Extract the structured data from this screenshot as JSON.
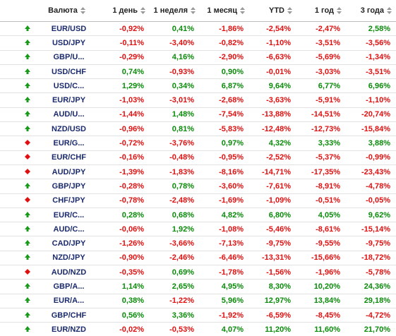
{
  "table": {
    "headers": [
      "Валюта",
      "1 день",
      "1 неделя",
      "1 месяц",
      "YTD",
      "1 год",
      "3 года"
    ],
    "rows": [
      {
        "direction": "up",
        "cells": [
          "EUR/USD",
          "-0,92%",
          "0,41%",
          "-1,86%",
          "-2,54%",
          "-2,47%",
          "2,58%"
        ]
      },
      {
        "direction": "up",
        "cells": [
          "USD/JPY",
          "-0,11%",
          "-3,40%",
          "-0,82%",
          "-1,10%",
          "-3,51%",
          "-3,56%"
        ]
      },
      {
        "direction": "up",
        "cells": [
          "GBP/U...",
          "-0,29%",
          "4,16%",
          "-2,90%",
          "-6,63%",
          "-5,69%",
          "-1,34%"
        ]
      },
      {
        "direction": "up",
        "cells": [
          "USD/CHF",
          "0,74%",
          "-0,93%",
          "0,90%",
          "-0,01%",
          "-3,03%",
          "-3,51%"
        ]
      },
      {
        "direction": "up",
        "cells": [
          "USD/C...",
          "1,29%",
          "0,34%",
          "6,87%",
          "9,64%",
          "6,77%",
          "6,96%"
        ]
      },
      {
        "direction": "up",
        "cells": [
          "EUR/JPY",
          "-1,03%",
          "-3,01%",
          "-2,68%",
          "-3,63%",
          "-5,91%",
          "-1,10%"
        ]
      },
      {
        "direction": "up",
        "cells": [
          "AUD/U...",
          "-1,44%",
          "1,48%",
          "-7,54%",
          "-13,88%",
          "-14,51%",
          "-20,74%"
        ]
      },
      {
        "direction": "up",
        "cells": [
          "NZD/USD",
          "-0,96%",
          "0,81%",
          "-5,83%",
          "-12,48%",
          "-12,73%",
          "-15,84%"
        ]
      },
      {
        "direction": "down",
        "cells": [
          "EUR/G...",
          "-0,72%",
          "-3,76%",
          "0,97%",
          "4,32%",
          "3,33%",
          "3,88%"
        ]
      },
      {
        "direction": "down",
        "cells": [
          "EUR/CHF",
          "-0,16%",
          "-0,48%",
          "-0,95%",
          "-2,52%",
          "-5,37%",
          "-0,99%"
        ]
      },
      {
        "direction": "down",
        "cells": [
          "AUD/JPY",
          "-1,39%",
          "-1,83%",
          "-8,16%",
          "-14,71%",
          "-17,35%",
          "-23,43%"
        ]
      },
      {
        "direction": "up",
        "cells": [
          "GBP/JPY",
          "-0,28%",
          "0,78%",
          "-3,60%",
          "-7,61%",
          "-8,91%",
          "-4,78%"
        ]
      },
      {
        "direction": "down",
        "cells": [
          "CHF/JPY",
          "-0,78%",
          "-2,48%",
          "-1,69%",
          "-1,09%",
          "-0,51%",
          "-0,05%"
        ]
      },
      {
        "direction": "up",
        "cells": [
          "EUR/C...",
          "0,28%",
          "0,68%",
          "4,82%",
          "6,80%",
          "4,05%",
          "9,62%"
        ]
      },
      {
        "direction": "up",
        "cells": [
          "AUD/C...",
          "-0,06%",
          "1,92%",
          "-1,08%",
          "-5,46%",
          "-8,61%",
          "-15,14%"
        ]
      },
      {
        "direction": "up",
        "cells": [
          "CAD/JPY",
          "-1,26%",
          "-3,66%",
          "-7,13%",
          "-9,75%",
          "-9,55%",
          "-9,75%"
        ]
      },
      {
        "direction": "up",
        "cells": [
          "NZD/JPY",
          "-0,90%",
          "-2,46%",
          "-6,46%",
          "-13,31%",
          "-15,66%",
          "-18,72%"
        ]
      },
      {
        "direction": "down",
        "cells": [
          "AUD/NZD",
          "-0,35%",
          "0,69%",
          "-1,78%",
          "-1,56%",
          "-1,96%",
          "-5,78%"
        ]
      },
      {
        "direction": "up",
        "cells": [
          "GBP/A...",
          "1,14%",
          "2,65%",
          "4,95%",
          "8,30%",
          "10,20%",
          "24,36%"
        ]
      },
      {
        "direction": "up",
        "cells": [
          "EUR/A...",
          "0,38%",
          "-1,22%",
          "5,96%",
          "12,97%",
          "13,84%",
          "29,18%"
        ]
      },
      {
        "direction": "up",
        "cells": [
          "GBP/CHF",
          "0,56%",
          "3,36%",
          "-1,92%",
          "-6,59%",
          "-8,45%",
          "-4,72%"
        ]
      },
      {
        "direction": "up",
        "cells": [
          "EUR/NZD",
          "-0,02%",
          "-0,53%",
          "4,07%",
          "11,20%",
          "11,60%",
          "21,70%"
        ]
      }
    ]
  }
}
